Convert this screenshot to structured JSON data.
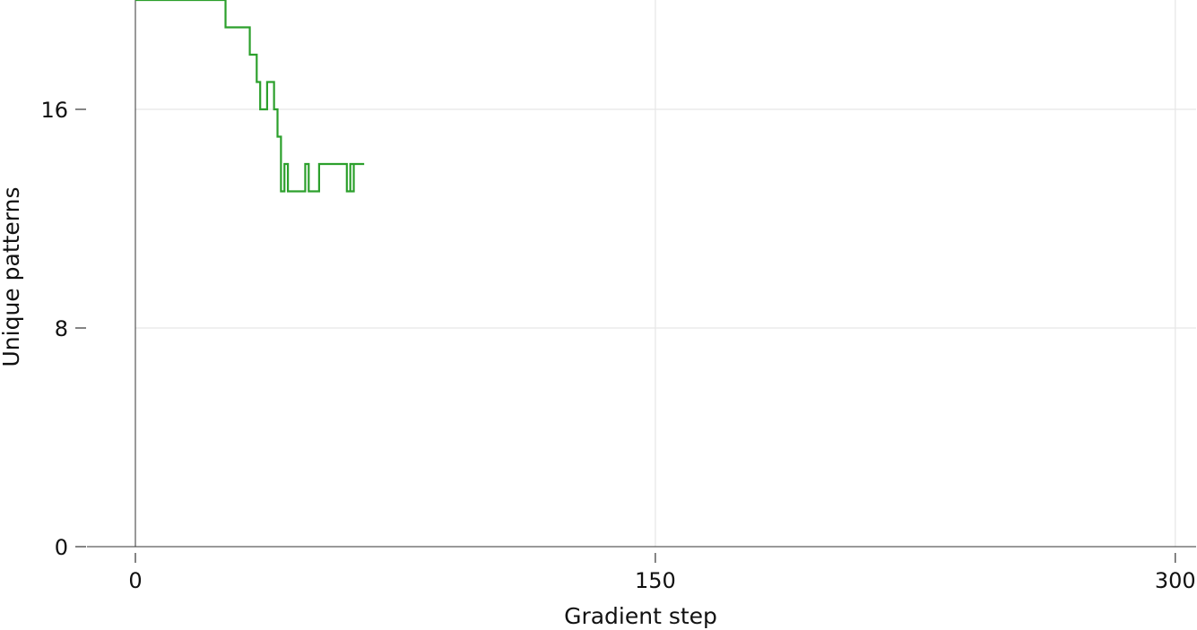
{
  "chart_data": {
    "type": "line",
    "drawstyle": "steps-post",
    "title": "",
    "xlabel": "Gradient step",
    "ylabel": "Unique patterns",
    "xlim": [
      0,
      306
    ],
    "ylim": [
      0,
      20
    ],
    "xticks": [
      0,
      150,
      300
    ],
    "yticks": [
      0,
      8,
      16
    ],
    "grid": true,
    "legend": "none",
    "series": [
      {
        "color": "#2ca02c",
        "points": [
          [
            0,
            20
          ],
          [
            26,
            19
          ],
          [
            33,
            18
          ],
          [
            35,
            17
          ],
          [
            36,
            16
          ],
          [
            38,
            17
          ],
          [
            40,
            16
          ],
          [
            41,
            15
          ],
          [
            42,
            13
          ],
          [
            43,
            14
          ],
          [
            44,
            13
          ],
          [
            49,
            14
          ],
          [
            50,
            13
          ],
          [
            53,
            14
          ],
          [
            58,
            14
          ],
          [
            61,
            13
          ],
          [
            63,
            14
          ],
          [
            66,
            14
          ],
          [
            62,
            13
          ],
          [
            63,
            14
          ],
          [
            62,
            14
          ],
          [
            62,
            13
          ],
          [
            62,
            13
          ],
          [
            62,
            14
          ],
          [
            66,
            14
          ],
          [
            62,
            14
          ],
          [
            62,
            14
          ],
          [
            62,
            14
          ],
          [
            62,
            14
          ],
          [
            62,
            14
          ]
        ]
      }
    ]
  }
}
